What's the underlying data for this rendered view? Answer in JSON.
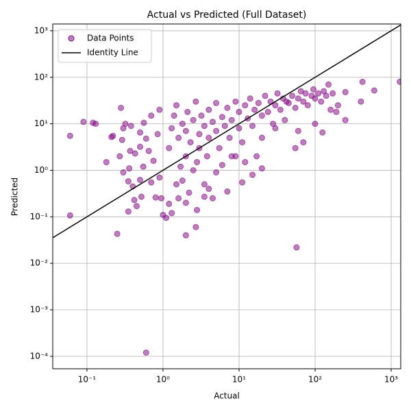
{
  "chart_data": {
    "type": "scatter",
    "title": "Actual vs Predicted (Full Dataset)",
    "x_label": "Actual",
    "y_label": "Predicted",
    "xlog": true,
    "ylog": true,
    "grid": true,
    "legend_loc": "upper left",
    "xlim": [
      0.0355,
      1336
    ],
    "ylim": [
      5.4e-05,
      1400
    ],
    "xticks": [
      {
        "value": 0.1,
        "label": "10⁻¹"
      },
      {
        "value": 1,
        "label": "10⁰"
      },
      {
        "value": 10,
        "label": "10¹"
      },
      {
        "value": 100,
        "label": "10²"
      },
      {
        "value": 1000,
        "label": "10³"
      }
    ],
    "yticks": [
      {
        "value": 0.0001,
        "label": "10⁻⁴"
      },
      {
        "value": 0.001,
        "label": "10⁻³"
      },
      {
        "value": 0.01,
        "label": "10⁻²"
      },
      {
        "value": 0.1,
        "label": "10⁻¹"
      },
      {
        "value": 1,
        "label": "10⁰"
      },
      {
        "value": 10,
        "label": "10¹"
      },
      {
        "value": 100,
        "label": "10²"
      },
      {
        "value": 1000,
        "label": "10³"
      }
    ],
    "series": [
      {
        "name": "Data Points",
        "kind": "points",
        "color": "#800080",
        "x": [
          0.06,
          0.06,
          0.09,
          0.12,
          0.13,
          0.18,
          0.21,
          0.22,
          0.25,
          0.27,
          0.28,
          0.29,
          0.3,
          0.3,
          0.32,
          0.35,
          0.35,
          0.36,
          0.37,
          0.38,
          0.4,
          0.42,
          0.43,
          0.45,
          0.5,
          0.5,
          0.5,
          0.52,
          0.55,
          0.56,
          0.6,
          0.6,
          0.65,
          0.7,
          0.7,
          0.75,
          0.8,
          0.85,
          0.9,
          0.9,
          0.95,
          1.0,
          1.1,
          1.2,
          1.3,
          1.5,
          1.6,
          1.8,
          2,
          2,
          2.2,
          2.7,
          2.8,
          3.5,
          4,
          4.5,
          5,
          7,
          11,
          57,
          1.2,
          1.3,
          1.4,
          1.5,
          1.6,
          1.7,
          1.8,
          2,
          2,
          2.1,
          2.3,
          2.5,
          2.5,
          2.7,
          3,
          3,
          3.2,
          3.5,
          3.8,
          4,
          4,
          4.5,
          5,
          5,
          5.5,
          6,
          6.5,
          7,
          7.5,
          8,
          8,
          9,
          10,
          10,
          11,
          12,
          13,
          14,
          15,
          16,
          17,
          18,
          20,
          20,
          22,
          24,
          26,
          28,
          30,
          32,
          35,
          38,
          40,
          42,
          45,
          50,
          55,
          55,
          60,
          65,
          70,
          75,
          80,
          90,
          95,
          100,
          100,
          110,
          120,
          125,
          130,
          140,
          150,
          160,
          170,
          190,
          200,
          250,
          250,
          400,
          420,
          600,
          1300,
          60,
          70,
          30,
          20,
          15,
          12,
          9,
          6,
          3.5,
          2.8
        ],
        "values": [
          5.5,
          0.107,
          11,
          10.5,
          10,
          1.5,
          5.2,
          5.5,
          0.043,
          2,
          22,
          4.5,
          0.9,
          8,
          10,
          0.58,
          0.13,
          1.1,
          2.6,
          9,
          0.45,
          0.23,
          2.3,
          0.17,
          0.62,
          6.5,
          3.2,
          0.27,
          1.2,
          10.5,
          0.00012,
          4.8,
          2.6,
          0.55,
          15,
          1.6,
          0.26,
          6,
          0.7,
          20,
          0.25,
          0.11,
          0.095,
          0.19,
          0.12,
          0.5,
          0.25,
          0.6,
          0.04,
          0.2,
          0.33,
          0.06,
          0.14,
          0.27,
          0.4,
          0.25,
          0.9,
          0.35,
          0.55,
          0.022,
          3,
          8,
          15,
          25,
          5,
          1.2,
          10,
          2,
          7,
          18,
          4,
          12,
          1,
          30,
          6,
          3,
          15,
          9,
          2,
          20,
          5,
          11,
          7,
          28,
          3,
          14,
          9,
          22,
          5,
          12,
          2,
          30,
          18,
          8,
          4,
          25,
          13,
          35,
          9,
          20,
          2,
          28,
          15,
          5,
          40,
          18,
          30,
          10,
          25,
          45,
          20,
          35,
          12,
          30,
          28,
          40,
          3,
          22,
          35,
          50,
          30,
          45,
          25,
          40,
          55,
          10,
          35,
          45,
          30,
          6.5,
          50,
          40,
          70,
          20,
          45,
          18,
          25,
          12,
          48,
          30,
          80,
          52,
          80,
          7,
          4,
          8,
          1.1,
          0.8,
          1.5,
          2,
          1.3,
          0.5,
          1.5
        ]
      },
      {
        "name": "Identity Line",
        "kind": "line",
        "color": "#000000",
        "x": [
          0.0355,
          1336
        ],
        "values": [
          0.0355,
          1336
        ]
      }
    ]
  }
}
